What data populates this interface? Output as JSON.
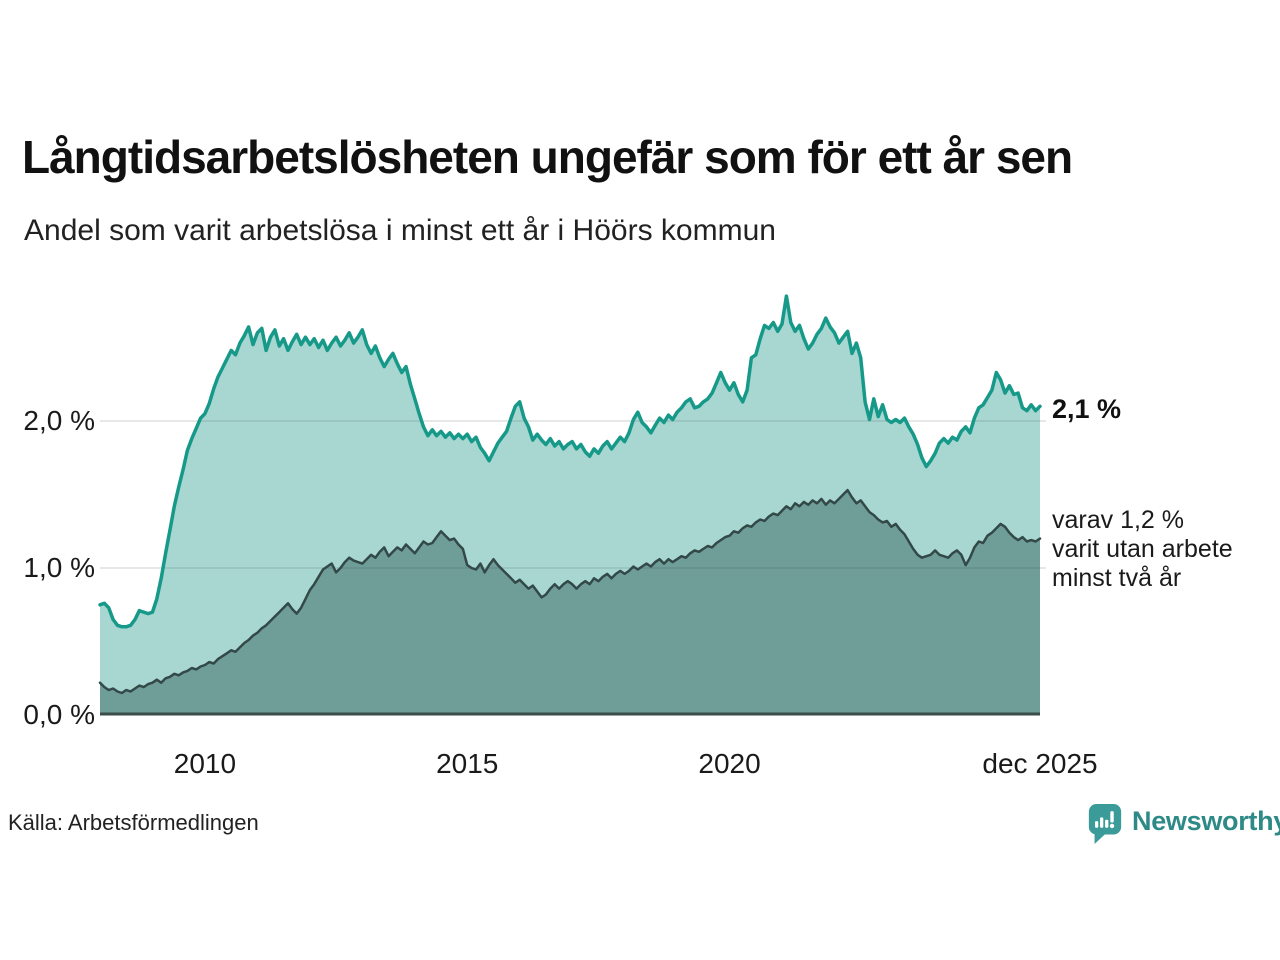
{
  "title": "Långtidsarbetslösheten ungefär som för ett år sen",
  "subtitle": "Andel som varit arbetslösa i minst ett år i Höörs kommun",
  "source": "Källa: Arbetsförmedlingen",
  "branding": {
    "name": "Newsworthy",
    "icon": "bar-chart-pin-icon",
    "text_color": "#2e8a87",
    "mark_color": "#3b9b98"
  },
  "annotations": {
    "latest_total": "2,1 %",
    "latest_two_years": [
      "varav 1,2 %",
      "varit utan arbete",
      "minst två år"
    ]
  },
  "colors": {
    "background": "#ffffff",
    "series1_line": "#17998a",
    "series1_fill": "#a8d7d1",
    "series2_line": "#334947",
    "series2_fill": "#6f9e99",
    "gridline": "rgba(50,70,70,0.16)",
    "baseline": "#3a4d49",
    "text": "#1a1a1a"
  },
  "chart_data": {
    "type": "area",
    "title": "Långtidsarbetslösheten ungefär som för ett år sen",
    "subtitle": "Andel som varit arbetslösa i minst ett år i Höörs kommun",
    "unit": "%",
    "x_range": [
      2008.0,
      2025.917
    ],
    "y_range": [
      0,
      2.95
    ],
    "grid": true,
    "start_year": 2008.0,
    "points_per_year": 12,
    "x_ticks": [
      {
        "x": 2010,
        "label": "2010"
      },
      {
        "x": 2015,
        "label": "2015"
      },
      {
        "x": 2020,
        "label": "2020"
      },
      {
        "x": 2025.917,
        "label": "dec 2025"
      }
    ],
    "y_ticks": [
      {
        "value": 2.0,
        "label": "2,0 %"
      },
      {
        "value": 1.0,
        "label": "1,0 %"
      },
      {
        "value": 0.0,
        "label": "0,0 %"
      }
    ],
    "series": [
      {
        "name": "Arbetslösa minst ett år",
        "latest_value": 2.1,
        "latest_label": "2,1 %",
        "line_color": "#17998a",
        "fill_color": "#a8d7d1",
        "line_width": 3.5,
        "values": [
          0.75,
          0.76,
          0.73,
          0.65,
          0.61,
          0.6,
          0.6,
          0.61,
          0.65,
          0.71,
          0.7,
          0.69,
          0.7,
          0.79,
          0.93,
          1.1,
          1.26,
          1.42,
          1.55,
          1.67,
          1.8,
          1.88,
          1.95,
          2.02,
          2.05,
          2.12,
          2.22,
          2.3,
          2.36,
          2.42,
          2.48,
          2.45,
          2.53,
          2.58,
          2.64,
          2.52,
          2.6,
          2.63,
          2.48,
          2.57,
          2.62,
          2.51,
          2.56,
          2.48,
          2.54,
          2.59,
          2.52,
          2.57,
          2.52,
          2.56,
          2.5,
          2.55,
          2.48,
          2.53,
          2.57,
          2.51,
          2.55,
          2.6,
          2.53,
          2.57,
          2.62,
          2.52,
          2.46,
          2.51,
          2.43,
          2.37,
          2.42,
          2.46,
          2.39,
          2.33,
          2.37,
          2.25,
          2.15,
          2.05,
          1.96,
          1.9,
          1.94,
          1.9,
          1.93,
          1.89,
          1.92,
          1.88,
          1.91,
          1.88,
          1.91,
          1.86,
          1.89,
          1.82,
          1.78,
          1.73,
          1.79,
          1.85,
          1.89,
          1.93,
          2.02,
          2.1,
          2.13,
          2.02,
          1.96,
          1.87,
          1.91,
          1.87,
          1.84,
          1.88,
          1.83,
          1.86,
          1.81,
          1.84,
          1.86,
          1.81,
          1.84,
          1.79,
          1.76,
          1.81,
          1.78,
          1.83,
          1.86,
          1.81,
          1.85,
          1.89,
          1.86,
          1.92,
          2.01,
          2.06,
          1.99,
          1.96,
          1.92,
          1.97,
          2.02,
          1.99,
          2.04,
          2.01,
          2.06,
          2.09,
          2.13,
          2.15,
          2.09,
          2.1,
          2.13,
          2.15,
          2.19,
          2.26,
          2.33,
          2.26,
          2.21,
          2.26,
          2.18,
          2.13,
          2.21,
          2.43,
          2.45,
          2.56,
          2.65,
          2.63,
          2.67,
          2.61,
          2.66,
          2.85,
          2.67,
          2.61,
          2.65,
          2.56,
          2.49,
          2.53,
          2.59,
          2.63,
          2.7,
          2.64,
          2.6,
          2.53,
          2.57,
          2.61,
          2.46,
          2.53,
          2.43,
          2.13,
          2.01,
          2.15,
          2.03,
          2.11,
          2.01,
          1.99,
          2.01,
          1.99,
          2.02,
          1.96,
          1.91,
          1.84,
          1.75,
          1.69,
          1.73,
          1.78,
          1.85,
          1.88,
          1.85,
          1.89,
          1.87,
          1.93,
          1.96,
          1.92,
          2.02,
          2.09,
          2.11,
          2.16,
          2.21,
          2.33,
          2.28,
          2.19,
          2.24,
          2.18,
          2.19,
          2.09,
          2.07,
          2.11,
          2.07,
          2.1
        ]
      },
      {
        "name": "Arbetslösa minst två år",
        "latest_value": 1.2,
        "latest_label": "varav 1,2 % varit utan arbete minst två år",
        "line_color": "#334947",
        "fill_color": "#6f9e99",
        "line_width": 2.5,
        "values": [
          0.22,
          0.19,
          0.17,
          0.18,
          0.16,
          0.15,
          0.17,
          0.16,
          0.18,
          0.2,
          0.19,
          0.21,
          0.22,
          0.24,
          0.22,
          0.25,
          0.26,
          0.28,
          0.27,
          0.29,
          0.3,
          0.32,
          0.31,
          0.33,
          0.34,
          0.36,
          0.35,
          0.38,
          0.4,
          0.42,
          0.44,
          0.43,
          0.46,
          0.49,
          0.51,
          0.54,
          0.56,
          0.59,
          0.61,
          0.64,
          0.67,
          0.7,
          0.73,
          0.76,
          0.72,
          0.69,
          0.73,
          0.79,
          0.85,
          0.89,
          0.94,
          0.99,
          1.01,
          1.03,
          0.97,
          1.0,
          1.04,
          1.07,
          1.05,
          1.04,
          1.03,
          1.06,
          1.09,
          1.07,
          1.11,
          1.14,
          1.08,
          1.11,
          1.14,
          1.12,
          1.16,
          1.13,
          1.1,
          1.14,
          1.18,
          1.16,
          1.17,
          1.21,
          1.25,
          1.22,
          1.19,
          1.2,
          1.16,
          1.13,
          1.02,
          1.0,
          0.99,
          1.03,
          0.97,
          1.02,
          1.06,
          1.02,
          0.99,
          0.96,
          0.93,
          0.9,
          0.92,
          0.89,
          0.86,
          0.88,
          0.84,
          0.8,
          0.82,
          0.86,
          0.89,
          0.86,
          0.89,
          0.91,
          0.89,
          0.86,
          0.89,
          0.91,
          0.89,
          0.93,
          0.91,
          0.94,
          0.96,
          0.93,
          0.96,
          0.98,
          0.96,
          0.98,
          1.01,
          0.99,
          1.01,
          1.03,
          1.01,
          1.04,
          1.06,
          1.03,
          1.06,
          1.04,
          1.06,
          1.08,
          1.07,
          1.1,
          1.12,
          1.11,
          1.13,
          1.15,
          1.14,
          1.17,
          1.19,
          1.21,
          1.22,
          1.25,
          1.24,
          1.27,
          1.29,
          1.28,
          1.31,
          1.33,
          1.32,
          1.35,
          1.37,
          1.36,
          1.39,
          1.42,
          1.4,
          1.44,
          1.42,
          1.45,
          1.43,
          1.46,
          1.44,
          1.47,
          1.43,
          1.46,
          1.44,
          1.47,
          1.5,
          1.53,
          1.48,
          1.44,
          1.46,
          1.42,
          1.38,
          1.36,
          1.33,
          1.31,
          1.32,
          1.28,
          1.3,
          1.26,
          1.23,
          1.18,
          1.13,
          1.09,
          1.07,
          1.08,
          1.09,
          1.12,
          1.09,
          1.08,
          1.07,
          1.1,
          1.12,
          1.09,
          1.02,
          1.07,
          1.14,
          1.18,
          1.17,
          1.22,
          1.24,
          1.27,
          1.3,
          1.28,
          1.24,
          1.21,
          1.19,
          1.21,
          1.18,
          1.19,
          1.18,
          1.2
        ]
      }
    ]
  }
}
